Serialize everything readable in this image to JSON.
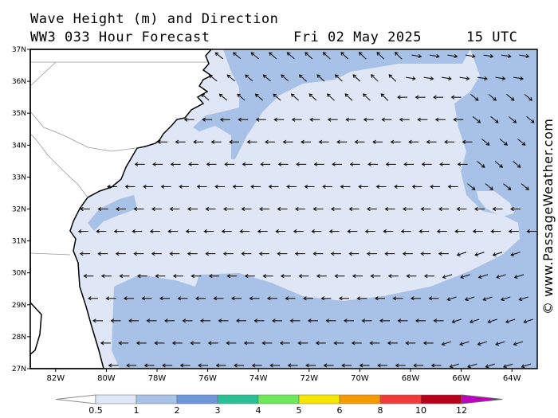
{
  "header": {
    "line1": "Wave Height (m) and Direction",
    "model": "WW3 033 Hour Forecast",
    "date": "Fri 02 May 2025",
    "time": "15 UTC"
  },
  "credit": "© www.PassageWeather.com",
  "map": {
    "lat_labels": [
      "37N",
      "36N",
      "35N",
      "34N",
      "33N",
      "32N",
      "31N",
      "30N",
      "29N",
      "28N",
      "27N"
    ],
    "lon_labels": [
      "82W",
      "80W",
      "78W",
      "76W",
      "74W",
      "72W",
      "70W",
      "68W",
      "66W",
      "64W"
    ],
    "lat_range": [
      27,
      37
    ],
    "lon_range": [
      -83,
      -63
    ],
    "dominant_direction": "westward",
    "arrow_rows_lat": [
      36.8,
      36.1,
      35.5,
      34.8,
      34.1,
      33.4,
      32.7,
      32.0,
      31.3,
      30.6,
      29.9,
      29.2,
      28.5,
      27.8,
      27.1
    ]
  },
  "colorbar": {
    "labels": [
      "0.5",
      "1",
      "2",
      "3",
      "4",
      "5",
      "6",
      "8",
      "10",
      "12"
    ],
    "colors": [
      "#dfe6f5",
      "#a8c1e6",
      "#6f96d8",
      "#2bbf95",
      "#6ee85a",
      "#f5e600",
      "#f59a00",
      "#f03a3a",
      "#b8001a",
      "#c000c0"
    ],
    "unit": "m"
  },
  "colors": {
    "band_light": "#dfe6f5",
    "band_mid": "#a8c1e6",
    "land": "#ffffff",
    "coast": "#000000"
  }
}
